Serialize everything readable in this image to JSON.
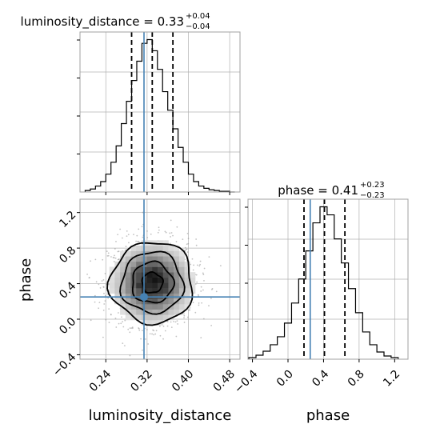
{
  "chart_data": [
    {
      "type": "histogram",
      "panel": "luminosity_distance marginal",
      "title": "luminosity_distance = 0.33",
      "title_upper": "+0.04",
      "title_lower": "−0.04",
      "xlim": [
        0.19,
        0.5
      ],
      "xticks": [
        0.24,
        0.32,
        0.4,
        0.48
      ],
      "bin_edges": [
        0.2,
        0.21,
        0.22,
        0.23,
        0.24,
        0.25,
        0.26,
        0.27,
        0.28,
        0.29,
        0.3,
        0.31,
        0.32,
        0.33,
        0.34,
        0.35,
        0.36,
        0.37,
        0.38,
        0.39,
        0.4,
        0.41,
        0.42,
        0.43,
        0.44,
        0.45,
        0.46,
        0.47,
        0.48,
        0.49
      ],
      "counts": [
        2,
        4,
        8,
        14,
        24,
        40,
        62,
        92,
        122,
        150,
        176,
        200,
        205,
        190,
        165,
        135,
        110,
        85,
        60,
        40,
        24,
        14,
        8,
        5,
        3,
        2,
        1,
        1,
        0
      ],
      "quantiles": [
        0.29,
        0.33,
        0.37
      ],
      "truth": 0.314
    },
    {
      "type": "histogram",
      "panel": "phase marginal",
      "title": "phase = 0.41",
      "title_upper": "+0.23",
      "title_lower": "−0.23",
      "xlim": [
        -0.45,
        1.35
      ],
      "xticks": [
        "−0.4",
        "0.0",
        "0.4",
        "0.8",
        "1.2"
      ],
      "xtick_values": [
        -0.4,
        0.0,
        0.4,
        0.8,
        1.2
      ],
      "xlabel": "phase",
      "bin_edges": [
        -0.44,
        -0.36,
        -0.28,
        -0.2,
        -0.12,
        -0.04,
        0.04,
        0.12,
        0.2,
        0.28,
        0.36,
        0.44,
        0.52,
        0.6,
        0.68,
        0.76,
        0.84,
        0.92,
        1.0,
        1.08,
        1.16,
        1.24
      ],
      "counts": [
        2,
        5,
        10,
        18,
        28,
        45,
        70,
        100,
        135,
        170,
        190,
        180,
        150,
        120,
        88,
        58,
        34,
        18,
        9,
        4,
        2
      ],
      "quantiles": [
        0.18,
        0.41,
        0.64
      ],
      "truth": 0.25
    },
    {
      "type": "heatmap",
      "panel": "2D density",
      "xlabel": "luminosity_distance",
      "ylabel": "phase",
      "xlim": [
        0.19,
        0.5
      ],
      "ylim": [
        -0.45,
        1.35
      ],
      "xticks": [
        0.24,
        0.32,
        0.4,
        0.48
      ],
      "yticks": [
        "−0.4",
        "0.0",
        "0.4",
        "0.8",
        "1.2"
      ],
      "ytick_values": [
        -0.4,
        0.0,
        0.4,
        0.8,
        1.2
      ],
      "center": [
        0.33,
        0.41
      ],
      "sigma": [
        0.04,
        0.23
      ],
      "contour_levels_sigma": [
        0.5,
        1.0,
        1.5,
        2.0
      ],
      "truth": [
        0.314,
        0.25
      ]
    }
  ],
  "colors": {
    "truth": "#4682b4",
    "line": "#000000",
    "grid": "#b0b0b0",
    "scatter": "#9a9a9a"
  }
}
